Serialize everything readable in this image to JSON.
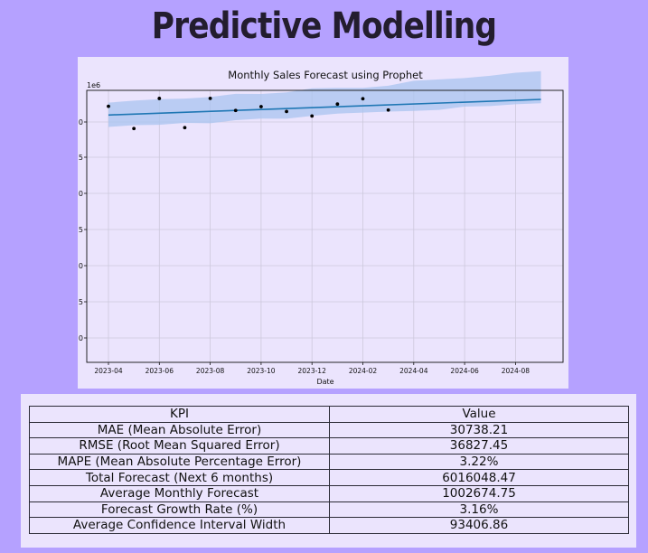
{
  "page": {
    "title": "Predictive Modelling"
  },
  "colors": {
    "background": "#b5a1ff",
    "panel": "#ebe4fd",
    "band": "#a9c4ef",
    "line": "#1f77b4",
    "points": "#000000"
  },
  "chart_data": {
    "type": "line",
    "title": "Monthly Sales Forecast using Prophet",
    "xlabel": "Date",
    "ylabel": "",
    "y_scale_label": "1e6",
    "x_tick_labels": [
      "2023-04",
      "2023-06",
      "2023-08",
      "2023-10",
      "2023-12",
      "2024-02",
      "2024-04",
      "2024-06",
      "2024-08"
    ],
    "y_tick_labels": [
      "0",
      "5",
      "0",
      "5",
      "0",
      "5",
      "0"
    ],
    "grid": true,
    "series": [
      {
        "role": "actual",
        "style": "scatter",
        "x": [
          "2023-04",
          "2023-05",
          "2023-06",
          "2023-07",
          "2023-08",
          "2023-09",
          "2023-10",
          "2023-11",
          "2023-12",
          "2024-01",
          "2024-02",
          "2024-03"
        ],
        "y": [
          0.954,
          0.8868,
          0.9776,
          0.8896,
          0.9778,
          0.9414,
          0.953,
          0.9383,
          0.9246,
          0.9606,
          0.9768,
          0.9428
        ]
      },
      {
        "role": "forecast",
        "style": "line",
        "x": [
          "2023-04",
          "2024-09"
        ],
        "y": [
          0.9277,
          0.9747
        ]
      },
      {
        "role": "confidence_interval",
        "style": "band",
        "x": [
          "2023-04",
          "2023-05",
          "2023-06",
          "2023-07",
          "2023-08",
          "2023-09",
          "2023-10",
          "2023-11",
          "2023-12",
          "2024-01",
          "2024-02",
          "2024-03",
          "2024-04",
          "2024-05",
          "2024-06",
          "2024-07",
          "2024-08",
          "2024-09"
        ],
        "lower": [
          0.8918,
          0.897,
          0.898,
          0.904,
          0.903,
          0.912,
          0.917,
          0.9165,
          0.925,
          0.932,
          0.935,
          0.938,
          0.94,
          0.943,
          0.953,
          0.9545,
          0.96,
          0.963
        ],
        "upper": [
          0.965,
          0.971,
          0.9755,
          0.977,
          0.982,
          0.9915,
          0.991,
          0.996,
          1.008,
          1.0095,
          1.0095,
          1.016,
          1.031,
          1.035,
          1.039,
          1.046,
          1.055,
          1.06
        ]
      }
    ]
  },
  "kpi_table": {
    "headers": [
      "KPI",
      "Value"
    ],
    "rows": [
      [
        "MAE (Mean Absolute Error)",
        "30738.21"
      ],
      [
        "RMSE (Root Mean Squared Error)",
        "36827.45"
      ],
      [
        "MAPE (Mean Absolute Percentage Error)",
        "3.22%"
      ],
      [
        "Total Forecast (Next 6 months)",
        "6016048.47"
      ],
      [
        "Average Monthly Forecast",
        "1002674.75"
      ],
      [
        "Forecast Growth Rate (%)",
        "3.16%"
      ],
      [
        "Average Confidence Interval Width",
        "93406.86"
      ]
    ]
  }
}
